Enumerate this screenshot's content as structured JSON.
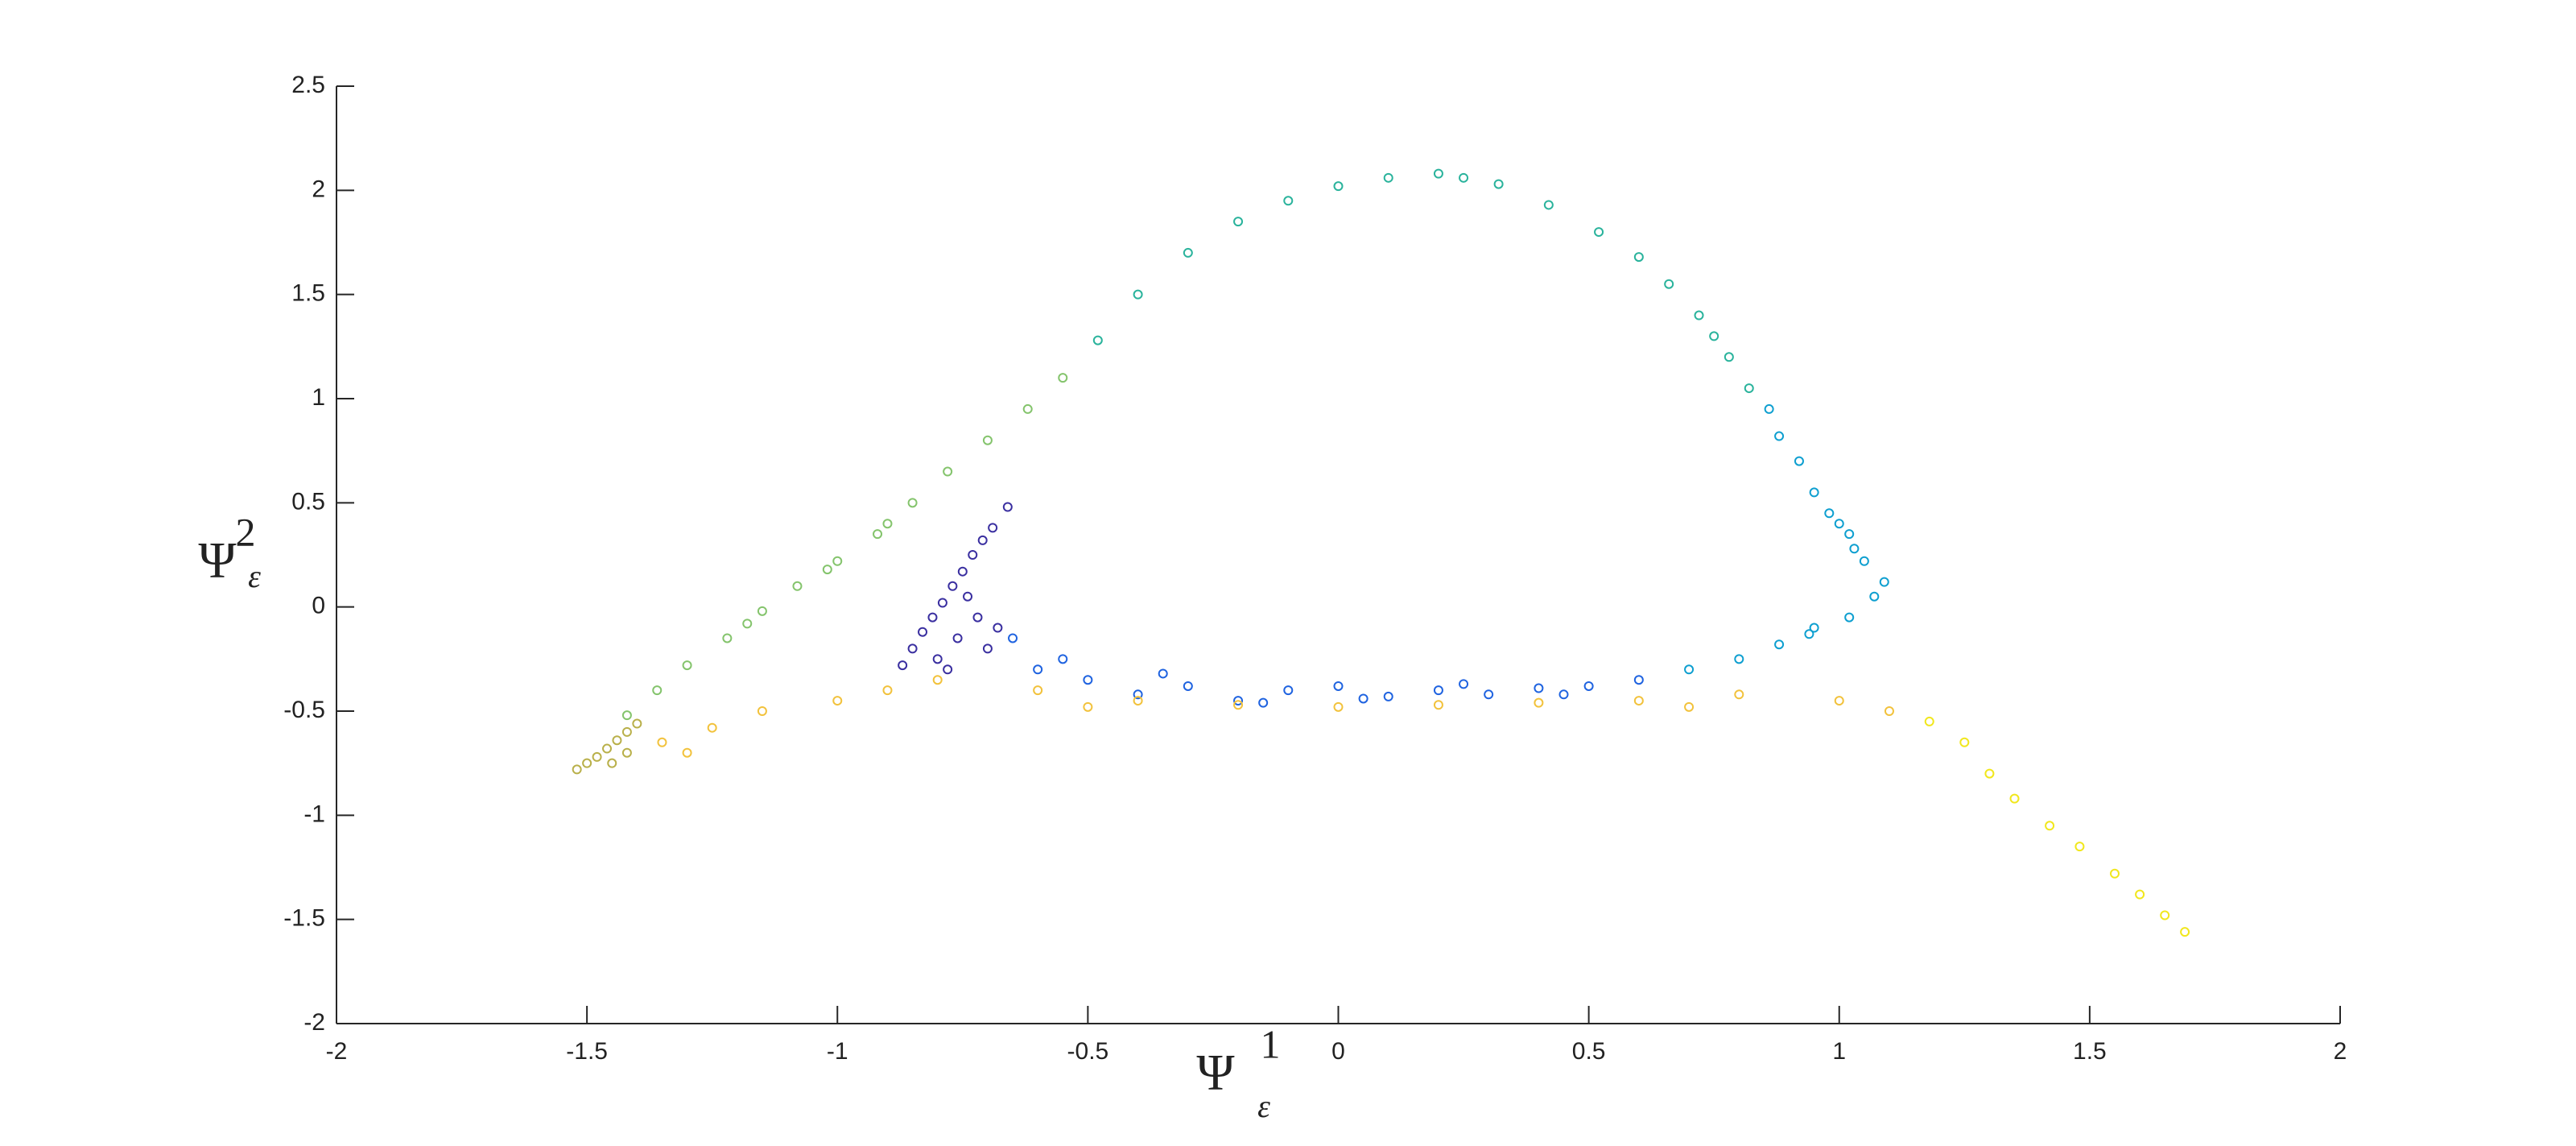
{
  "chart_data": {
    "type": "scatter",
    "xlabel": "Ψ",
    "xlabel_sup": "1",
    "xlabel_sub": "ε",
    "ylabel": "Ψ",
    "ylabel_sup": "2",
    "ylabel_sub": "ε",
    "xlim": [
      -2,
      2
    ],
    "ylim": [
      -2,
      2.5
    ],
    "xticks": [
      -2,
      -1.5,
      -1,
      -0.5,
      0,
      0.5,
      1,
      1.5,
      2
    ],
    "yticks": [
      -2,
      -1.5,
      -1,
      -0.5,
      0,
      0.5,
      1,
      1.5,
      2,
      2.5
    ],
    "grid": false,
    "series": [
      {
        "color": "#3a2fa0",
        "x": [
          -0.87,
          -0.85,
          -0.83,
          -0.81,
          -0.79,
          -0.77,
          -0.75,
          -0.73,
          -0.71,
          -0.69,
          -0.66,
          -0.8,
          -0.76,
          -0.72,
          -0.7,
          -0.78,
          -0.68,
          -0.74
        ],
        "values": [
          -0.28,
          -0.2,
          -0.12,
          -0.05,
          0.02,
          0.1,
          0.17,
          0.25,
          0.32,
          0.38,
          0.48,
          -0.25,
          -0.15,
          -0.05,
          -0.2,
          -0.3,
          -0.1,
          0.05
        ]
      },
      {
        "color": "#1f63e0",
        "x": [
          -0.6,
          -0.5,
          -0.4,
          -0.3,
          -0.2,
          -0.1,
          0,
          0.1,
          0.2,
          0.3,
          0.4,
          0.5,
          0.6,
          -0.65,
          -0.55,
          -0.35,
          -0.15,
          0.05,
          0.25,
          0.45
        ],
        "values": [
          -0.3,
          -0.35,
          -0.42,
          -0.38,
          -0.45,
          -0.4,
          -0.38,
          -0.43,
          -0.4,
          -0.42,
          -0.39,
          -0.38,
          -0.35,
          -0.15,
          -0.25,
          -0.32,
          -0.46,
          -0.44,
          -0.37,
          -0.42
        ]
      },
      {
        "color": "#0e9fd0",
        "x": [
          0.7,
          0.8,
          0.88,
          0.95,
          1.02,
          1.07,
          1.09,
          1.05,
          1.02,
          0.98,
          0.95,
          0.92,
          0.88,
          1.03,
          1.0,
          0.94,
          0.86
        ],
        "values": [
          -0.3,
          -0.25,
          -0.18,
          -0.1,
          -0.05,
          0.05,
          0.12,
          0.22,
          0.35,
          0.45,
          0.55,
          0.7,
          0.82,
          0.28,
          0.4,
          -0.13,
          0.95
        ]
      },
      {
        "color": "#2ab39c",
        "x": [
          0.82,
          0.78,
          0.72,
          0.66,
          0.6,
          0.52,
          0.42,
          0.32,
          0.2,
          0.1,
          0,
          -0.1,
          -0.2,
          -0.3,
          -0.4,
          -0.48,
          0.75,
          0.25
        ],
        "values": [
          1.05,
          1.2,
          1.4,
          1.55,
          1.68,
          1.8,
          1.93,
          2.03,
          2.08,
          2.06,
          2.02,
          1.95,
          1.85,
          1.7,
          1.5,
          1.28,
          1.3,
          2.06
        ]
      },
      {
        "color": "#84c46c",
        "x": [
          -0.55,
          -0.62,
          -0.7,
          -0.78,
          -0.85,
          -0.92,
          -1.0,
          -1.08,
          -1.15,
          -1.22,
          -1.3,
          -1.36,
          -1.42,
          -1.02,
          -0.9,
          -1.18
        ],
        "values": [
          1.1,
          0.95,
          0.8,
          0.65,
          0.5,
          0.35,
          0.22,
          0.1,
          -0.02,
          -0.15,
          -0.28,
          -0.4,
          -0.52,
          0.18,
          0.4,
          -0.08
        ]
      },
      {
        "color": "#b9b04a",
        "x": [
          -1.52,
          -1.5,
          -1.48,
          -1.46,
          -1.44,
          -1.42,
          -1.4,
          -1.45,
          -1.42
        ],
        "values": [
          -0.78,
          -0.75,
          -0.72,
          -0.68,
          -0.64,
          -0.6,
          -0.56,
          -0.75,
          -0.7
        ]
      },
      {
        "color": "#f2c23c",
        "x": [
          -1.35,
          -1.25,
          -1.15,
          -1.0,
          -0.9,
          -0.8,
          -0.6,
          -0.4,
          -0.2,
          0,
          0.2,
          0.4,
          0.6,
          0.8,
          1.0,
          1.1,
          -1.3,
          -0.5,
          0.7
        ],
        "values": [
          -0.65,
          -0.58,
          -0.5,
          -0.45,
          -0.4,
          -0.35,
          -0.4,
          -0.45,
          -0.47,
          -0.48,
          -0.47,
          -0.46,
          -0.45,
          -0.42,
          -0.45,
          -0.5,
          -0.7,
          -0.48,
          -0.48
        ]
      },
      {
        "color": "#f1e71c",
        "x": [
          1.18,
          1.25,
          1.3,
          1.35,
          1.42,
          1.48,
          1.55,
          1.6,
          1.65,
          1.69
        ],
        "values": [
          -0.55,
          -0.65,
          -0.8,
          -0.92,
          -1.05,
          -1.15,
          -1.28,
          -1.38,
          -1.48,
          -1.56
        ]
      }
    ]
  }
}
